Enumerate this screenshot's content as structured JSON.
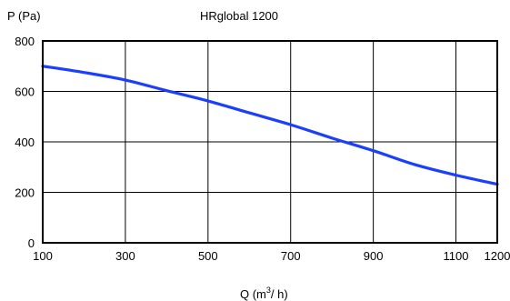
{
  "chart_data": {
    "type": "line",
    "title": "HRglobal 1200",
    "ylabel": "P  (Pa)",
    "xlabel": {
      "prefix": "Q  (m",
      "superscript": "3",
      "suffix": "/ h)"
    },
    "xlim": [
      100,
      1200
    ],
    "ylim": [
      0,
      800
    ],
    "x_ticks": [
      "100",
      "300",
      "500",
      "700",
      "900",
      "1100",
      "1200"
    ],
    "y_ticks": [
      "0",
      "200",
      "400",
      "600",
      "800"
    ],
    "grid": true,
    "series": [
      {
        "color": "#1a3fff",
        "x": [
          100,
          200,
          300,
          400,
          500,
          600,
          700,
          800,
          900,
          1000,
          1100,
          1200
        ],
        "y": [
          700,
          675,
          645,
          603,
          562,
          515,
          468,
          415,
          365,
          310,
          268,
          232
        ]
      }
    ]
  }
}
